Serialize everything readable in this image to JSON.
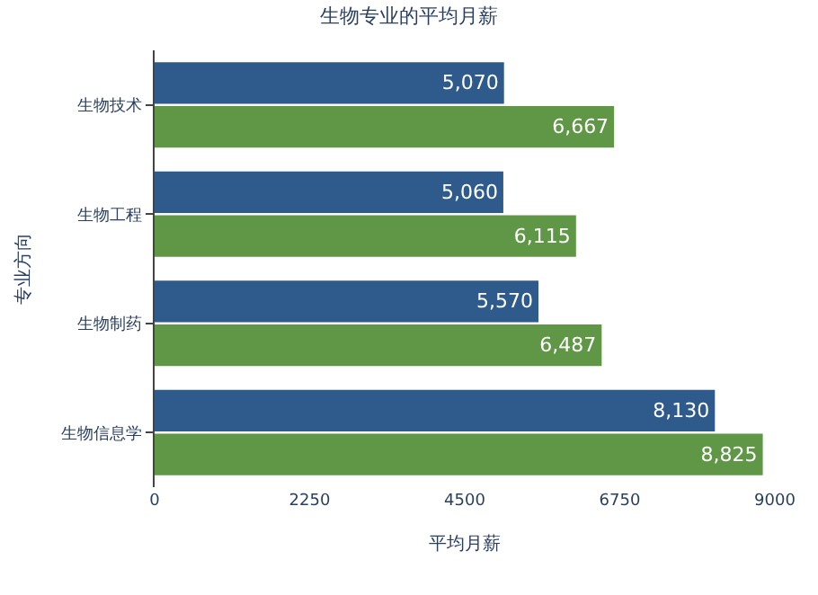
{
  "chart_data": {
    "type": "bar",
    "orientation": "horizontal",
    "title": "生物专业的平均月薪",
    "xlabel": "平均月薪",
    "ylabel": "专业方向",
    "categories": [
      "生物技术",
      "生物工程",
      "生物制药",
      "生物信息学"
    ],
    "series": [
      {
        "color": "#2f5b8c",
        "values": [
          5070,
          5060,
          5570,
          8130
        ],
        "value_labels": [
          "5,070",
          "5,060",
          "5,570",
          "8,130"
        ]
      },
      {
        "color": "#5f9747",
        "values": [
          6667,
          6115,
          6487,
          8825
        ],
        "value_labels": [
          "6,667",
          "6,115",
          "6,487",
          "8,825"
        ]
      }
    ],
    "xlim": [
      0,
      9000
    ],
    "xticks": [
      0,
      2250,
      4500,
      6750,
      9000
    ]
  }
}
